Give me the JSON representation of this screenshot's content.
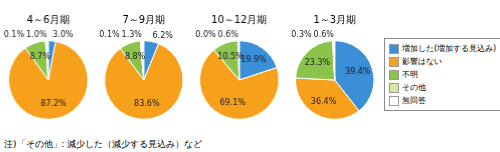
{
  "chart_data": [
    {
      "type": "pie",
      "title": "4～6月期",
      "categories": [
        "増加した(増加する見込み)",
        "影響はない",
        "不明",
        "その他",
        "無回答"
      ],
      "values": [
        3.0,
        87.2,
        8.7,
        0.1,
        1.0
      ],
      "value_labels": [
        "3.0%",
        "87.2%",
        "8.7%",
        "0.1%",
        "1.0%"
      ],
      "colors": [
        "#3b8fd6",
        "#f7a01c",
        "#8cc44b",
        "#d4e79e",
        "#ffffff"
      ],
      "data_labels": true
    },
    {
      "type": "pie",
      "title": "7～9月期",
      "categories": [
        "増加した(増加する見込み)",
        "影響はない",
        "不明",
        "その他",
        "無回答"
      ],
      "values": [
        6.2,
        83.6,
        8.8,
        0.1,
        1.3
      ],
      "value_labels": [
        "6.2%",
        "83.6%",
        "8.8%",
        "0.1%",
        "1.3%"
      ],
      "colors": [
        "#3b8fd6",
        "#f7a01c",
        "#8cc44b",
        "#d4e79e",
        "#ffffff"
      ],
      "data_labels": true
    },
    {
      "type": "pie",
      "title": "10～12月期",
      "categories": [
        "増加した(増加する見込み)",
        "影響はない",
        "不明",
        "その他",
        "無回答"
      ],
      "values": [
        19.9,
        69.1,
        10.5,
        0.0,
        0.6
      ],
      "value_labels": [
        "19.9%",
        "69.1%",
        "10.5%",
        "0.0%",
        "0.6%"
      ],
      "colors": [
        "#3b8fd6",
        "#f7a01c",
        "#8cc44b",
        "#d4e79e",
        "#ffffff"
      ],
      "data_labels": true
    },
    {
      "type": "pie",
      "title": "1～3月期",
      "categories": [
        "増加した(増加する見込み)",
        "影響はない",
        "不明",
        "その他",
        "無回答"
      ],
      "values": [
        39.4,
        36.4,
        23.3,
        0.3,
        0.6
      ],
      "value_labels": [
        "39.4%",
        "36.4%",
        "23.3%",
        "0.3%",
        "0.6%"
      ],
      "colors": [
        "#3b8fd6",
        "#f7a01c",
        "#8cc44b",
        "#d4e79e",
        "#ffffff"
      ],
      "data_labels": true,
      "legend": "right"
    }
  ],
  "note": "注)「その他」: 減少した（減少する見込み）など"
}
